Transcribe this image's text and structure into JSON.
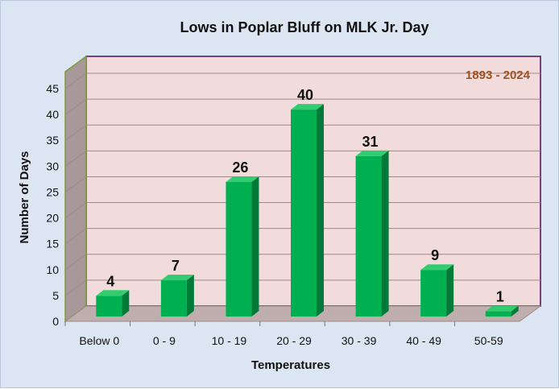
{
  "chart_data": {
    "type": "bar",
    "title": "Lows in Poplar Bluff on MLK Jr. Day",
    "annotation": "1893 - 2024",
    "xlabel": "Temperatures",
    "ylabel": "Number of Days",
    "categories": [
      "Below 0",
      "0 - 9",
      "10 - 19",
      "20 - 29",
      "30 - 39",
      "40 - 49",
      "50-59"
    ],
    "values": [
      4,
      7,
      26,
      40,
      31,
      9,
      1
    ],
    "ylim": [
      0,
      45
    ],
    "yticks": [
      0,
      5,
      10,
      15,
      20,
      25,
      30,
      35,
      40,
      45
    ],
    "grid": true,
    "legend": "none",
    "colors": {
      "bar_front": "#00b050",
      "bar_side": "#007a36",
      "bar_top": "#33cc70",
      "plot_back": "#f2dcdb",
      "left_wall": "#a8989a",
      "floor": "#c0aeae",
      "frame": "#7a3f7a",
      "grid": "#9a8a8a"
    }
  }
}
